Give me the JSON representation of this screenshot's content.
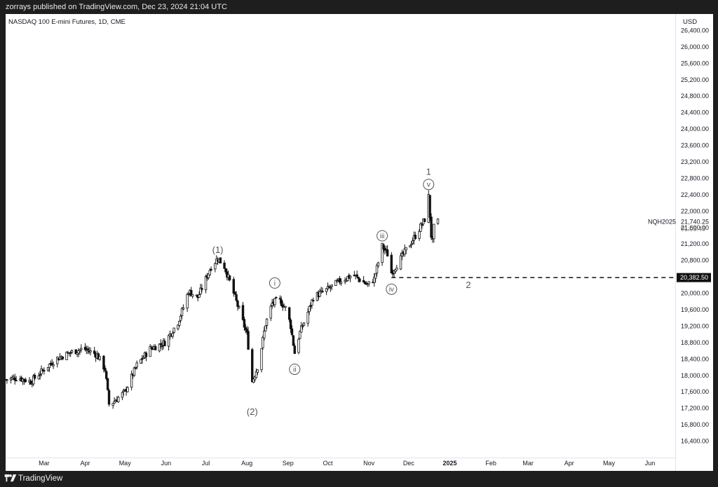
{
  "header": {
    "published": "zorrays published on TradingView.com, Dec 23, 2024 21:04 UTC"
  },
  "footer": {
    "brand": "TradingView",
    "logo_icon": "tradingview-logo-icon"
  },
  "chart_data": {
    "type": "candlestick",
    "title": "NASDAQ 100 E-mini Futures, 1D, CME",
    "currency": "USD",
    "symbol": "NQH2025",
    "last_price": "21,740.25",
    "countdown": "01:05:45",
    "level_label": "20,382.50",
    "level_value": 20382.5,
    "ylim": [
      16000,
      26800
    ],
    "y_ticks": [
      16400,
      16800,
      17200,
      17600,
      18000,
      18400,
      18800,
      19200,
      19600,
      20000,
      20400,
      20800,
      21200,
      21600,
      22000,
      22400,
      22800,
      23200,
      23600,
      24000,
      24400,
      24800,
      25200,
      25600,
      26000,
      26400
    ],
    "y_tick_labels": [
      "16,400.00",
      "16,800.00",
      "17,200.00",
      "17,600.00",
      "18,000.00",
      "18,400.00",
      "18,800.00",
      "19,200.00",
      "19,600.00",
      "20,000.00",
      "20,400.00",
      "20,800.00",
      "21,200.00",
      "21,600.00",
      "22,000.00",
      "22,400.00",
      "22,800.00",
      "23,200.00",
      "23,600.00",
      "24,000.00",
      "24,400.00",
      "24,800.00",
      "25,200.00",
      "25,600.00",
      "26,000.00",
      "26,400.00"
    ],
    "x_ticks": [
      {
        "date": "2024-03-01",
        "label": "Mar"
      },
      {
        "date": "2024-04-01",
        "label": "Apr"
      },
      {
        "date": "2024-05-01",
        "label": "May"
      },
      {
        "date": "2024-06-01",
        "label": "Jun"
      },
      {
        "date": "2024-07-01",
        "label": "Jul"
      },
      {
        "date": "2024-08-01",
        "label": "Aug"
      },
      {
        "date": "2024-09-01",
        "label": "Sep"
      },
      {
        "date": "2024-10-01",
        "label": "Oct"
      },
      {
        "date": "2024-11-01",
        "label": "Nov"
      },
      {
        "date": "2024-12-01",
        "label": "Dec"
      },
      {
        "date": "2025-01-01",
        "label": "2025"
      },
      {
        "date": "2025-02-01",
        "label": "Feb"
      },
      {
        "date": "2025-03-01",
        "label": "Mar"
      },
      {
        "date": "2025-04-01",
        "label": "Apr"
      },
      {
        "date": "2025-05-01",
        "label": "May"
      },
      {
        "date": "2025-06-01",
        "label": "Jun"
      }
    ],
    "xlim": [
      "2024-02-01",
      "2025-06-20"
    ],
    "price_path": [
      [
        "2024-02-01",
        17900
      ],
      [
        "2024-02-10",
        17950
      ],
      [
        "2024-02-20",
        17850
      ],
      [
        "2024-03-01",
        18150
      ],
      [
        "2024-03-10",
        18400
      ],
      [
        "2024-03-20",
        18550
      ],
      [
        "2024-03-31",
        18650
      ],
      [
        "2024-04-10",
        18500
      ],
      [
        "2024-04-16",
        18150
      ],
      [
        "2024-04-19",
        17300
      ],
      [
        "2024-04-22",
        17350
      ],
      [
        "2024-05-01",
        17600
      ],
      [
        "2024-05-10",
        18250
      ],
      [
        "2024-05-20",
        18650
      ],
      [
        "2024-05-31",
        18800
      ],
      [
        "2024-06-10",
        19300
      ],
      [
        "2024-06-14",
        19650
      ],
      [
        "2024-06-18",
        20050
      ],
      [
        "2024-06-25",
        19900
      ],
      [
        "2024-07-05",
        20650
      ],
      [
        "2024-07-10",
        20850
      ],
      [
        "2024-07-15",
        20650
      ],
      [
        "2024-07-20",
        20200
      ],
      [
        "2024-07-25",
        19700
      ],
      [
        "2024-08-01",
        19000
      ],
      [
        "2024-08-05",
        17850
      ],
      [
        "2024-08-10",
        18300
      ],
      [
        "2024-08-15",
        19250
      ],
      [
        "2024-08-20",
        19750
      ],
      [
        "2024-08-25",
        19850
      ],
      [
        "2024-08-31",
        19600
      ],
      [
        "2024-09-03",
        19200
      ],
      [
        "2024-09-06",
        18550
      ],
      [
        "2024-09-10",
        19050
      ],
      [
        "2024-09-15",
        19450
      ],
      [
        "2024-09-20",
        19900
      ],
      [
        "2024-10-01",
        20100
      ],
      [
        "2024-10-10",
        20300
      ],
      [
        "2024-10-20",
        20450
      ],
      [
        "2024-10-31",
        20200
      ],
      [
        "2024-11-05",
        20350
      ],
      [
        "2024-11-11",
        21150
      ],
      [
        "2024-11-15",
        20950
      ],
      [
        "2024-11-18",
        20500
      ],
      [
        "2024-11-25",
        20850
      ],
      [
        "2024-12-01",
        21150
      ],
      [
        "2024-12-07",
        21450
      ],
      [
        "2024-12-13",
        21800
      ],
      [
        "2024-12-16",
        22350
      ],
      [
        "2024-12-18",
        21400
      ],
      [
        "2024-12-19",
        21250
      ],
      [
        "2024-12-20",
        21600
      ],
      [
        "2024-12-23",
        21740
      ]
    ],
    "annotations": [
      {
        "label": "(1)",
        "date": "2024-07-10",
        "price": 21050,
        "style": "plain"
      },
      {
        "label": "(2)",
        "date": "2024-08-05",
        "price": 17110,
        "style": "plain"
      },
      {
        "label": "i",
        "date": "2024-08-22",
        "price": 20250,
        "style": "circle"
      },
      {
        "label": "ii",
        "date": "2024-09-06",
        "price": 18150,
        "style": "circle"
      },
      {
        "label": "iii",
        "date": "2024-11-11",
        "price": 21400,
        "style": "circle"
      },
      {
        "label": "iv",
        "date": "2024-11-18",
        "price": 20100,
        "style": "circle"
      },
      {
        "label": "v",
        "date": "2024-12-16",
        "price": 22650,
        "style": "circle"
      },
      {
        "label": "1",
        "date": "2024-12-16",
        "price": 22950,
        "style": "plain"
      },
      {
        "label": "2",
        "date": "2025-01-15",
        "price": 20200,
        "style": "plain"
      }
    ],
    "level_start_date": "2024-11-18",
    "grid": false,
    "colors": {
      "candles": "#111111",
      "background": "#ffffff",
      "text": "#131722",
      "label": "#555555",
      "level_badge": "#111111"
    }
  }
}
